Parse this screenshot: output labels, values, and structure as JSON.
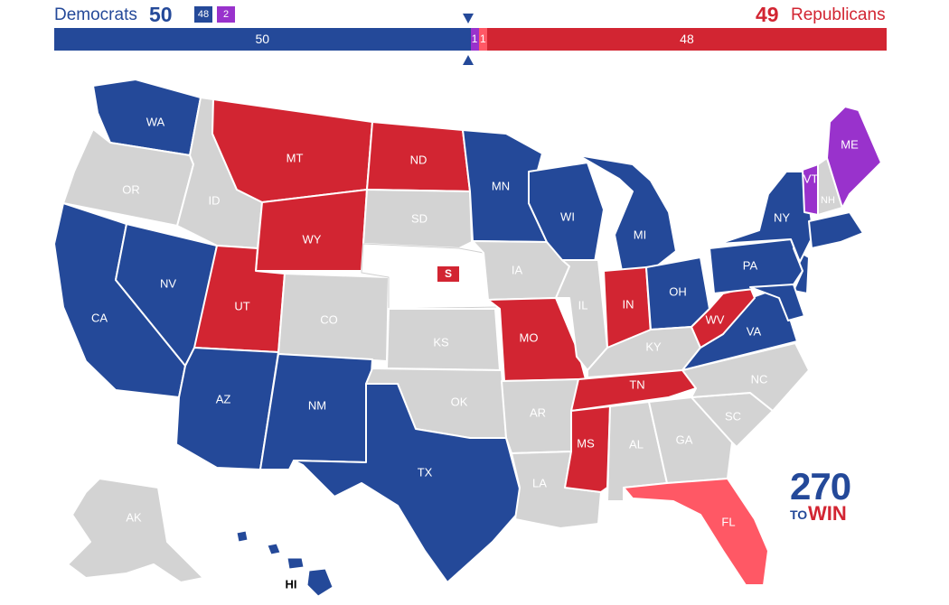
{
  "header": {
    "dem_label": "Democrats",
    "dem_total": "50",
    "rep_total": "49",
    "rep_label": "Republicans",
    "chip_dem": "48",
    "chip_ind": "2"
  },
  "bar": {
    "total_seats": 100,
    "segments": [
      {
        "party": "dem",
        "seats": 50,
        "label": "50",
        "color": "#244999"
      },
      {
        "party": "ind",
        "seats": 1,
        "label": "1",
        "color": "#9932cc"
      },
      {
        "party": "lean_rep",
        "seats": 1,
        "label": "1",
        "color": "#ff5865"
      },
      {
        "party": "rep",
        "seats": 48,
        "label": "48",
        "color": "#d22532"
      }
    ]
  },
  "colors": {
    "dem": "#244999",
    "rep": "#d22532",
    "lean_rep": "#ff5865",
    "ind": "#9932cc",
    "none": "#d3d3d3",
    "special": "#ffffff"
  },
  "states": {
    "WA": {
      "label": "WA",
      "status": "dem"
    },
    "OR": {
      "label": "OR",
      "status": "none"
    },
    "CA": {
      "label": "CA",
      "status": "dem"
    },
    "NV": {
      "label": "NV",
      "status": "dem"
    },
    "ID": {
      "label": "ID",
      "status": "none"
    },
    "MT": {
      "label": "MT",
      "status": "rep"
    },
    "WY": {
      "label": "WY",
      "status": "rep"
    },
    "UT": {
      "label": "UT",
      "status": "rep"
    },
    "AZ": {
      "label": "AZ",
      "status": "dem"
    },
    "CO": {
      "label": "CO",
      "status": "none"
    },
    "NM": {
      "label": "NM",
      "status": "dem"
    },
    "ND": {
      "label": "ND",
      "status": "rep"
    },
    "SD": {
      "label": "SD",
      "status": "none"
    },
    "NE": {
      "label": "S",
      "status": "special"
    },
    "KS": {
      "label": "KS",
      "status": "none"
    },
    "OK": {
      "label": "OK",
      "status": "none"
    },
    "TX": {
      "label": "TX",
      "status": "dem"
    },
    "MN": {
      "label": "MN",
      "status": "dem"
    },
    "IA": {
      "label": "IA",
      "status": "none"
    },
    "MO": {
      "label": "MO",
      "status": "rep"
    },
    "AR": {
      "label": "AR",
      "status": "none"
    },
    "LA": {
      "label": "LA",
      "status": "none"
    },
    "WI": {
      "label": "WI",
      "status": "dem"
    },
    "IL": {
      "label": "IL",
      "status": "none"
    },
    "MI": {
      "label": "MI",
      "status": "dem"
    },
    "IN": {
      "label": "IN",
      "status": "rep"
    },
    "OH": {
      "label": "OH",
      "status": "dem"
    },
    "KY": {
      "label": "KY",
      "status": "none"
    },
    "TN": {
      "label": "TN",
      "status": "rep"
    },
    "MS": {
      "label": "MS",
      "status": "rep"
    },
    "AL": {
      "label": "AL",
      "status": "none"
    },
    "GA": {
      "label": "GA",
      "status": "none"
    },
    "FL": {
      "label": "FL",
      "status": "lean_rep"
    },
    "SC": {
      "label": "SC",
      "status": "none"
    },
    "NC": {
      "label": "NC",
      "status": "none"
    },
    "VA": {
      "label": "VA",
      "status": "dem"
    },
    "WV": {
      "label": "WV",
      "status": "rep"
    },
    "PA": {
      "label": "PA",
      "status": "dem"
    },
    "NY": {
      "label": "NY",
      "status": "dem"
    },
    "VT": {
      "label": "VT",
      "status": "ind"
    },
    "NH": {
      "label": "NH",
      "status": "none"
    },
    "ME": {
      "label": "ME",
      "status": "ind"
    },
    "AK": {
      "label": "AK",
      "status": "none"
    },
    "HI": {
      "label": "HI",
      "status": "dem"
    }
  },
  "logo": {
    "number": "270",
    "to": "TO",
    "win": "WIN"
  }
}
